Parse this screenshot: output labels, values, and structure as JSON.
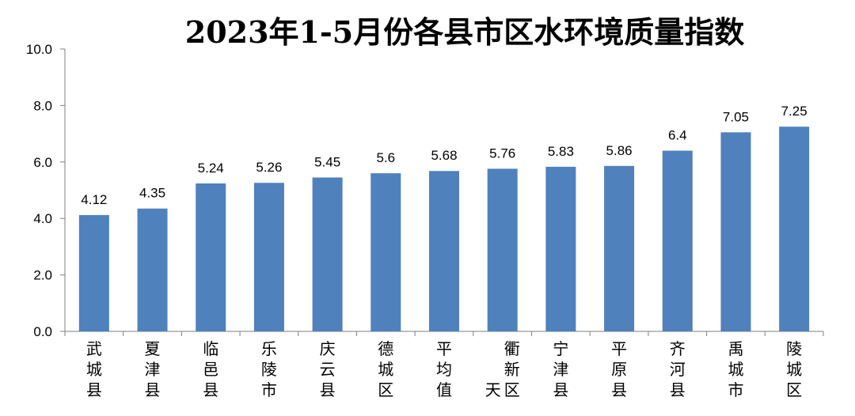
{
  "chart_data": {
    "type": "bar",
    "title": "2023年1-5月份各县市区水环境质量指数",
    "categories": [
      "武城县",
      "夏津县",
      "临邑县",
      "乐陵市",
      "庆云县",
      "德城区",
      "平均值",
      "天衢新区",
      "宁津县",
      "平原县",
      "齐河县",
      "禹城市",
      "陵城区"
    ],
    "values": [
      4.12,
      4.35,
      5.24,
      5.26,
      5.45,
      5.6,
      5.68,
      5.76,
      5.83,
      5.86,
      6.4,
      7.05,
      7.25
    ],
    "data_labels": [
      "4.12",
      "4.35",
      "5.24",
      "5.26",
      "5.45",
      "5.6",
      "5.68",
      "5.76",
      "5.83",
      "5.86",
      "6.4",
      "7.05",
      "7.25"
    ],
    "yticks": [
      "0.0",
      "2.0",
      "4.0",
      "6.0",
      "8.0",
      "10.0"
    ],
    "ylim": [
      0,
      10
    ],
    "bar_color": "#4f81bd",
    "grid": false,
    "legend": "none"
  }
}
